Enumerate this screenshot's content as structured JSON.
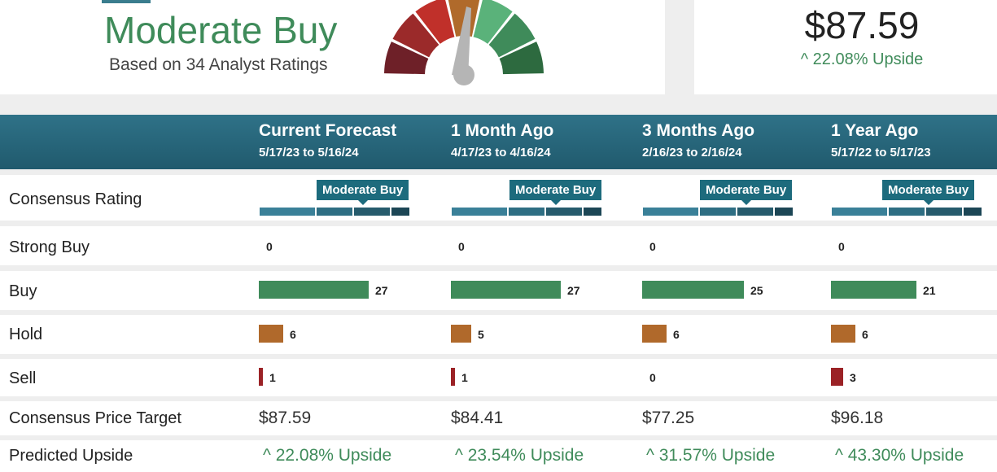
{
  "summary": {
    "rating": "Moderate Buy",
    "based_on": "Based on 34 Analyst Ratings",
    "price_target": "$87.59",
    "upside": "22.08% Upside",
    "upside_arrow": "^"
  },
  "gauge_colors": [
    "#6e2028",
    "#9b2a2a",
    "#c0302a",
    "#b06a2b",
    "#5ab27a",
    "#3f8b5a",
    "#2d6a3f"
  ],
  "columns": [
    {
      "heading": "Current Forecast",
      "dates": "5/17/23 to 5/16/24",
      "consensus": "Moderate Buy",
      "strong_buy": "0",
      "buy": "27",
      "hold": "6",
      "sell": "1",
      "target": "$87.59",
      "upside": "22.08% Upside"
    },
    {
      "heading": "1 Month Ago",
      "dates": "4/17/23 to 4/16/24",
      "consensus": "Moderate Buy",
      "strong_buy": "0",
      "buy": "27",
      "hold": "5",
      "sell": "1",
      "target": "$84.41",
      "upside": "23.54% Upside"
    },
    {
      "heading": "3 Months Ago",
      "dates": "2/16/23 to 2/16/24",
      "consensus": "Moderate Buy",
      "strong_buy": "0",
      "buy": "25",
      "hold": "6",
      "sell": "0",
      "target": "$77.25",
      "upside": "31.57% Upside"
    },
    {
      "heading": "1 Year Ago",
      "dates": "5/17/22 to 5/17/23",
      "consensus": "Moderate Buy",
      "strong_buy": "0",
      "buy": "21",
      "hold": "6",
      "sell": "3",
      "target": "$96.18",
      "upside": "43.30% Upside"
    }
  ],
  "row_labels": {
    "consensus": "Consensus Rating",
    "strong_buy": "Strong Buy",
    "buy": "Buy",
    "hold": "Hold",
    "sell": "Sell",
    "target": "Consensus Price Target",
    "upside": "Predicted Upside"
  },
  "colors": {
    "header_bg": "#2a6a80",
    "buy": "#3f8b5a",
    "hold": "#b0692b",
    "sell": "#9b2226",
    "upside_text": "#3f8b5a",
    "badge": "#1d6b7d"
  },
  "icons": {
    "upside_arrow": "chevron-up-icon"
  }
}
